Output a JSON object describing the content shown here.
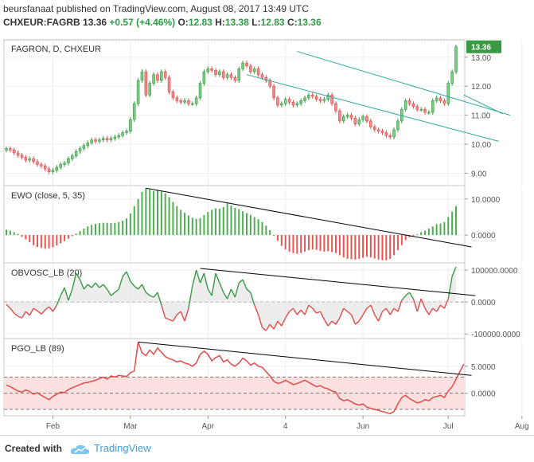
{
  "header": {
    "user": "beursfanaat",
    "published": "published on TradingView.com, August 08, 2017 13:49 UTC",
    "symbol": "CHXEUR:FAGRB",
    "last": "13.36",
    "change": "+0.57 (+4.46%)",
    "o_label": "O:",
    "o": "12.83",
    "h_label": "H:",
    "h": "13.38",
    "l_label": "L:",
    "l": "12.83",
    "c_label": "C:",
    "c": "13.36"
  },
  "footer": {
    "created": "Created with",
    "brand": "TradingView"
  },
  "colors": {
    "up": "#3a9a44",
    "down": "#e24b4b",
    "channel": "#2fa89a",
    "osc_line": "#e24b4b",
    "hist_up": "#4caf50",
    "hist_down": "#ef5350",
    "band": "#fde0e0"
  },
  "chart_data": [
    {
      "type": "candlestick",
      "pane_label": "FAGRON, D, CHXEUR",
      "price_tag": "13.36",
      "y_ticks": [
        "13.00",
        "12.00",
        "11.00",
        "10.00",
        "9.00"
      ],
      "y_tick_values": [
        13,
        12,
        11,
        10,
        9
      ],
      "ylim": [
        8.6,
        13.6
      ],
      "x_ticks": [
        "Feb",
        "Mar",
        "Apr",
        "4",
        "Jun",
        "Jul",
        "Aug"
      ],
      "x_tick_index": [
        12,
        32,
        52,
        72,
        92,
        114,
        133
      ],
      "close": [
        9.85,
        9.8,
        9.7,
        9.62,
        9.55,
        9.45,
        9.5,
        9.4,
        9.3,
        9.25,
        9.15,
        9.05,
        9.1,
        9.2,
        9.3,
        9.35,
        9.5,
        9.6,
        9.75,
        9.85,
        9.95,
        10.05,
        10.15,
        10.1,
        10.15,
        10.2,
        10.15,
        10.2,
        10.25,
        10.3,
        10.4,
        10.45,
        10.85,
        11.4,
        12.2,
        12.5,
        11.7,
        12.1,
        12.4,
        12.2,
        12.5,
        12.3,
        11.8,
        11.6,
        11.5,
        11.45,
        11.5,
        11.4,
        11.4,
        11.6,
        12.1,
        12.5,
        12.6,
        12.55,
        12.4,
        12.5,
        12.3,
        12.4,
        12.3,
        12.2,
        12.6,
        12.8,
        12.7,
        12.5,
        12.6,
        12.4,
        12.3,
        12.2,
        12.0,
        11.6,
        11.35,
        11.4,
        11.55,
        11.45,
        11.35,
        11.4,
        11.5,
        11.6,
        11.7,
        11.65,
        11.55,
        11.5,
        11.55,
        11.7,
        11.4,
        11.15,
        10.8,
        10.95,
        11.0,
        10.9,
        10.7,
        10.85,
        10.95,
        10.8,
        10.6,
        10.5,
        10.45,
        10.4,
        10.3,
        10.25,
        10.5,
        10.8,
        11.2,
        11.5,
        11.4,
        11.3,
        11.2,
        11.2,
        11.1,
        11.1,
        11.5,
        11.6,
        11.5,
        11.4,
        12.1,
        12.5,
        13.36
      ],
      "trend_lines": [
        {
          "from": [
            62,
            12.4
          ],
          "to": [
            127,
            10.1
          ]
        },
        {
          "from": [
            75,
            13.2
          ],
          "to": [
            130,
            11.0
          ]
        },
        {
          "from": [
            118,
            11.7
          ],
          "to": [
            128,
            11.05
          ]
        }
      ]
    },
    {
      "type": "bar",
      "pane_label": "EWO (close, 5, 35)",
      "y_ticks": [
        "10.0000",
        "0.0000"
      ],
      "y_tick_values": [
        10,
        0
      ],
      "ylim": [
        -7.5,
        13.5
      ],
      "values": [
        1.5,
        1.2,
        0.8,
        0.3,
        -0.5,
        -1.2,
        -2.0,
        -2.8,
        -3.3,
        -3.6,
        -3.8,
        -3.7,
        -3.4,
        -2.9,
        -2.3,
        -1.7,
        -1.0,
        -0.3,
        0.4,
        1.1,
        1.8,
        2.4,
        2.8,
        3.1,
        3.3,
        3.4,
        3.4,
        3.3,
        3.4,
        3.6,
        4.0,
        4.6,
        6.0,
        8.0,
        10.0,
        12.0,
        13.0,
        12.6,
        12.2,
        12.4,
        12.1,
        11.6,
        10.5,
        9.2,
        8.0,
        7.0,
        6.2,
        5.4,
        4.8,
        4.5,
        4.7,
        5.6,
        6.4,
        7.0,
        7.4,
        7.3,
        7.8,
        8.8,
        8.2,
        7.6,
        7.2,
        6.6,
        6.1,
        5.6,
        5.0,
        4.4,
        3.6,
        2.6,
        1.4,
        0.0,
        -1.6,
        -3.0,
        -4.0,
        -4.6,
        -5.0,
        -5.2,
        -5.0,
        -4.6,
        -4.2,
        -4.0,
        -4.1,
        -4.4,
        -4.6,
        -4.5,
        -4.7,
        -5.0,
        -5.6,
        -6.2,
        -6.6,
        -6.7,
        -6.8,
        -6.6,
        -6.3,
        -6.0,
        -6.2,
        -6.5,
        -6.8,
        -7.0,
        -7.0,
        -6.6,
        -5.6,
        -4.2,
        -2.8,
        -1.4,
        -0.6,
        -0.3,
        0.2,
        0.8,
        1.2,
        1.8,
        2.4,
        3.0,
        3.2,
        3.6,
        5.0,
        6.5,
        8.0
      ],
      "trend_line": {
        "from": [
          36,
          13.0
        ],
        "to": [
          120,
          -3.3
        ]
      }
    },
    {
      "type": "area",
      "pane_label": "OBVOSC_LB (20)",
      "y_ticks": [
        "100000.0000",
        "0.0000",
        "-100000.0000"
      ],
      "y_tick_values": [
        100000,
        0,
        -100000
      ],
      "ylim": [
        -112000,
        120000
      ],
      "values": [
        -8000,
        -20000,
        -35000,
        -45000,
        -50000,
        -30000,
        -42000,
        -20000,
        -28000,
        -38000,
        -25000,
        -15000,
        -30000,
        -10000,
        20000,
        45000,
        5000,
        40000,
        90000,
        70000,
        40000,
        55000,
        45000,
        60000,
        45000,
        55000,
        40000,
        20000,
        30000,
        40000,
        80000,
        95000,
        65000,
        50000,
        40000,
        55000,
        30000,
        20000,
        15000,
        30000,
        -10000,
        -50000,
        -55000,
        -60000,
        -40000,
        -30000,
        -60000,
        -20000,
        50000,
        100000,
        60000,
        90000,
        40000,
        20000,
        90000,
        60000,
        30000,
        10000,
        40000,
        15000,
        60000,
        70000,
        40000,
        30000,
        -10000,
        -40000,
        -80000,
        -90000,
        -70000,
        -85000,
        -60000,
        -75000,
        -50000,
        -30000,
        -20000,
        -40000,
        -25000,
        -40000,
        -10000,
        -20000,
        -35000,
        -30000,
        -55000,
        -75000,
        -60000,
        -70000,
        -50000,
        -20000,
        -30000,
        -40000,
        -70000,
        -60000,
        -40000,
        -20000,
        -10000,
        -40000,
        -60000,
        -30000,
        -20000,
        -40000,
        -20000,
        -30000,
        5000,
        20000,
        30000,
        10000,
        -30000,
        10000,
        -20000,
        -40000,
        -20000,
        -30000,
        -10000,
        -20000,
        10000,
        80000,
        110000
      ],
      "trend_line": {
        "from": [
          50,
          105000
        ],
        "to": [
          121,
          20000
        ]
      }
    },
    {
      "type": "line",
      "pane_label": "PGO_LB (89)",
      "y_ticks": [
        "5.0000",
        "0.0000"
      ],
      "y_tick_values": [
        5,
        0
      ],
      "ylim": [
        -4.2,
        10.0
      ],
      "band": [
        -3,
        3
      ],
      "values": [
        1.5,
        1.2,
        0.8,
        0.4,
        0.2,
        0.6,
        0.3,
        -0.2,
        0.1,
        -0.4,
        -0.8,
        -1.2,
        -0.6,
        -0.2,
        0.2,
        0.1,
        0.7,
        1.0,
        1.3,
        1.6,
        1.9,
        2.0,
        2.2,
        2.4,
        2.7,
        3.0,
        2.6,
        3.2,
        3.0,
        3.3,
        3.2,
        3.1,
        3.8,
        4.1,
        9.5,
        7.5,
        7.0,
        8.0,
        7.2,
        8.4,
        7.6,
        6.8,
        6.4,
        6.2,
        5.8,
        6.0,
        5.6,
        5.4,
        5.0,
        5.6,
        7.2,
        7.8,
        7.2,
        6.0,
        6.6,
        7.0,
        5.8,
        6.2,
        5.4,
        5.0,
        5.6,
        6.5,
        6.0,
        5.2,
        5.6,
        5.0,
        4.8,
        4.0,
        3.2,
        2.2,
        1.8,
        2.0,
        2.4,
        2.0,
        1.6,
        1.8,
        2.1,
        2.4,
        2.0,
        1.6,
        1.2,
        1.4,
        1.0,
        0.8,
        0.4,
        0.2,
        -1.0,
        -1.4,
        -1.2,
        -1.6,
        -2.0,
        -2.2,
        -2.0,
        -2.6,
        -2.8,
        -3.0,
        -3.2,
        -3.4,
        -3.6,
        -3.8,
        -3.4,
        -2.0,
        -0.8,
        -0.4,
        -1.0,
        -1.4,
        -1.8,
        -1.6,
        -1.2,
        -1.4,
        -0.8,
        -0.6,
        -0.4,
        -0.8,
        0.4,
        1.2,
        2.6,
        4.0,
        5.4
      ],
      "trend_line": {
        "from": [
          34,
          9.5
        ],
        "to": [
          120,
          3.3
        ]
      }
    }
  ]
}
